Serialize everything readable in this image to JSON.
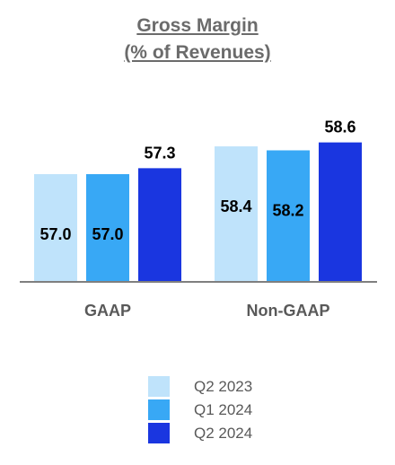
{
  "chart_data": {
    "type": "bar",
    "title": "Gross Margin",
    "subtitle": "(% of Revenues)",
    "categories": [
      "GAAP",
      "Non-GAAP"
    ],
    "series": [
      {
        "name": "Q2 2023",
        "values": [
          57.0,
          58.4
        ],
        "color": "#bfe3fb"
      },
      {
        "name": "Q1 2024",
        "values": [
          57.0,
          58.2
        ],
        "color": "#38a8f5"
      },
      {
        "name": "Q2 2024",
        "values": [
          57.3,
          58.6
        ],
        "color": "#1a36e0"
      }
    ],
    "data_labels": [
      [
        "57.0",
        "58.4"
      ],
      [
        "57.0",
        "58.2"
      ],
      [
        "57.3",
        "58.6"
      ]
    ],
    "legend_placement": "bottom-center",
    "grid": false
  }
}
